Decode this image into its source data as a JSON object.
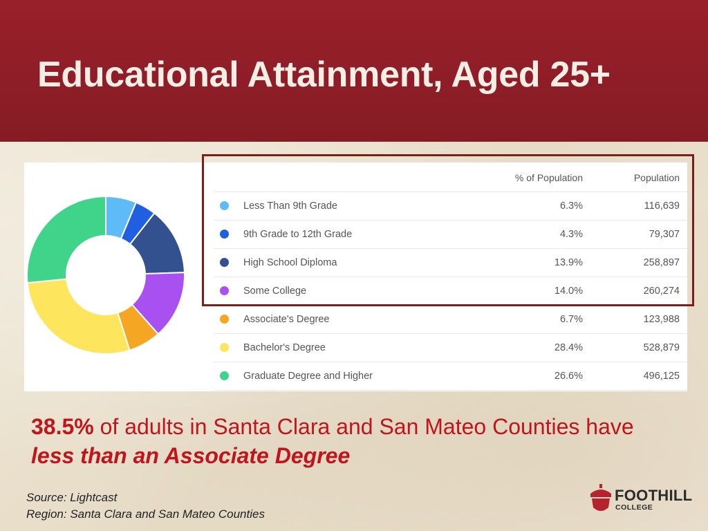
{
  "slide": {
    "title": "Educational Attainment, Aged 25+",
    "callout": {
      "lead": "38.5%",
      "text": " of adults in Santa Clara and San Mateo Counties have",
      "emphasis": "less than an Associate Degree"
    },
    "source_line": "Source: Lightcast",
    "region_line": "Region: Santa Clara and San Mateo Counties",
    "logo": {
      "name": "FOOTHILL",
      "subtitle": "COLLEGE"
    }
  },
  "chart_data": {
    "type": "pie",
    "variant": "donut",
    "columns": [
      "% of Population",
      "Population"
    ],
    "categories": [
      "Less Than 9th Grade",
      "9th Grade to 12th Grade",
      "High School Diploma",
      "Some College",
      "Associate's Degree",
      "Bachelor's Degree",
      "Graduate Degree and Higher"
    ],
    "percent_labels": [
      "6.3%",
      "4.3%",
      "13.9%",
      "14.0%",
      "6.7%",
      "28.4%",
      "26.6%"
    ],
    "values": [
      6.3,
      4.3,
      13.9,
      14.0,
      6.7,
      28.4,
      26.6
    ],
    "population_labels": [
      "116,639",
      "79,307",
      "258,897",
      "260,274",
      "123,988",
      "528,879",
      "496,125"
    ],
    "population": [
      116639,
      79307,
      258897,
      260274,
      123988,
      528879,
      496125
    ],
    "colors": [
      "#5ebbf5",
      "#1f5fe0",
      "#33508f",
      "#a950f0",
      "#f5a623",
      "#fde55e",
      "#40d38a"
    ],
    "highlighted_rows": [
      0,
      1,
      2,
      3
    ]
  }
}
